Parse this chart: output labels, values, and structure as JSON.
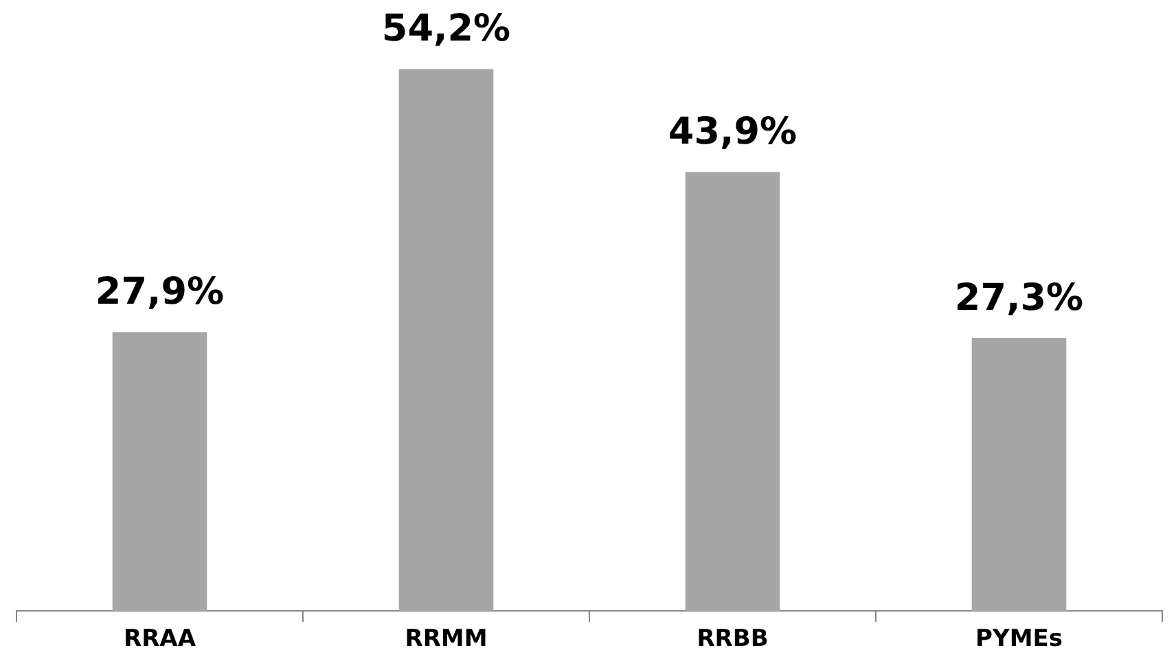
{
  "chart_data": {
    "type": "bar",
    "categories": [
      "RRAA",
      "RRMM",
      "RRBB",
      "PYMEs"
    ],
    "values": [
      27.9,
      54.2,
      43.9,
      27.3
    ],
    "value_labels": [
      "27,9%",
      "54,2%",
      "43,9%",
      "27,3%"
    ],
    "color": "#a6a6a6",
    "grid": false,
    "legend": false
  }
}
